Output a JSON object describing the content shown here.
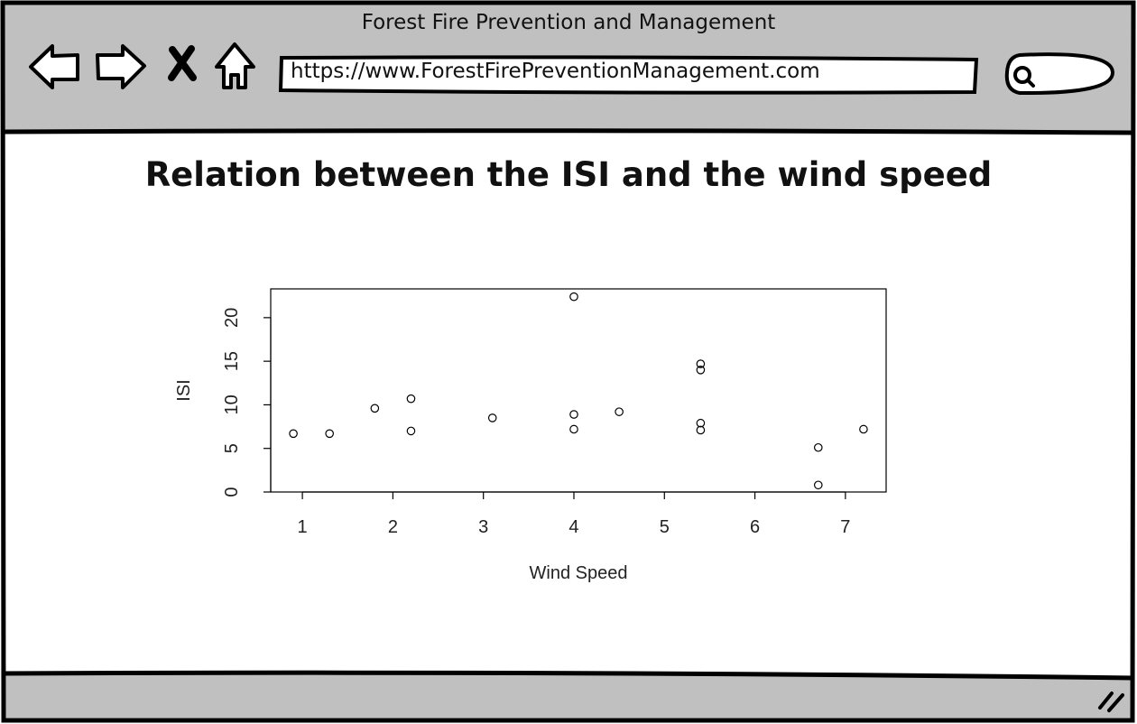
{
  "window": {
    "title": "Forest Fire Prevention and Management",
    "url": "https://www.ForestFirePreventionManagement.com",
    "search_placeholder": ""
  },
  "toolbar": {
    "icons": [
      "back-arrow-icon",
      "forward-arrow-icon",
      "close-icon",
      "home-icon",
      "search-icon",
      "resize-grip-icon"
    ]
  },
  "page": {
    "heading": "Relation between the ISI and the wind speed"
  },
  "colors": {
    "chrome": "#c0c0c0",
    "border": "#000000",
    "background": "#ffffff"
  },
  "chart_data": {
    "type": "scatter",
    "title": "",
    "xlabel": "Wind Speed",
    "ylabel": "ISI",
    "xlim": [
      0.65,
      7.45
    ],
    "ylim": [
      0,
      23.3
    ],
    "xticks": [
      1,
      2,
      3,
      4,
      5,
      6,
      7
    ],
    "yticks": [
      0,
      5,
      10,
      15,
      20
    ],
    "grid": false,
    "legend": "none",
    "points": [
      {
        "x": 0.9,
        "y": 6.7
      },
      {
        "x": 1.3,
        "y": 6.7
      },
      {
        "x": 1.8,
        "y": 9.6
      },
      {
        "x": 2.2,
        "y": 10.7
      },
      {
        "x": 2.2,
        "y": 7.0
      },
      {
        "x": 3.1,
        "y": 8.5
      },
      {
        "x": 4.0,
        "y": 22.4
      },
      {
        "x": 4.0,
        "y": 8.9
      },
      {
        "x": 4.0,
        "y": 7.2
      },
      {
        "x": 4.5,
        "y": 9.2
      },
      {
        "x": 5.4,
        "y": 14.7
      },
      {
        "x": 5.4,
        "y": 14.0
      },
      {
        "x": 5.4,
        "y": 7.9
      },
      {
        "x": 5.4,
        "y": 7.1
      },
      {
        "x": 6.7,
        "y": 5.1
      },
      {
        "x": 6.7,
        "y": 0.8
      },
      {
        "x": 7.2,
        "y": 7.2
      }
    ]
  }
}
